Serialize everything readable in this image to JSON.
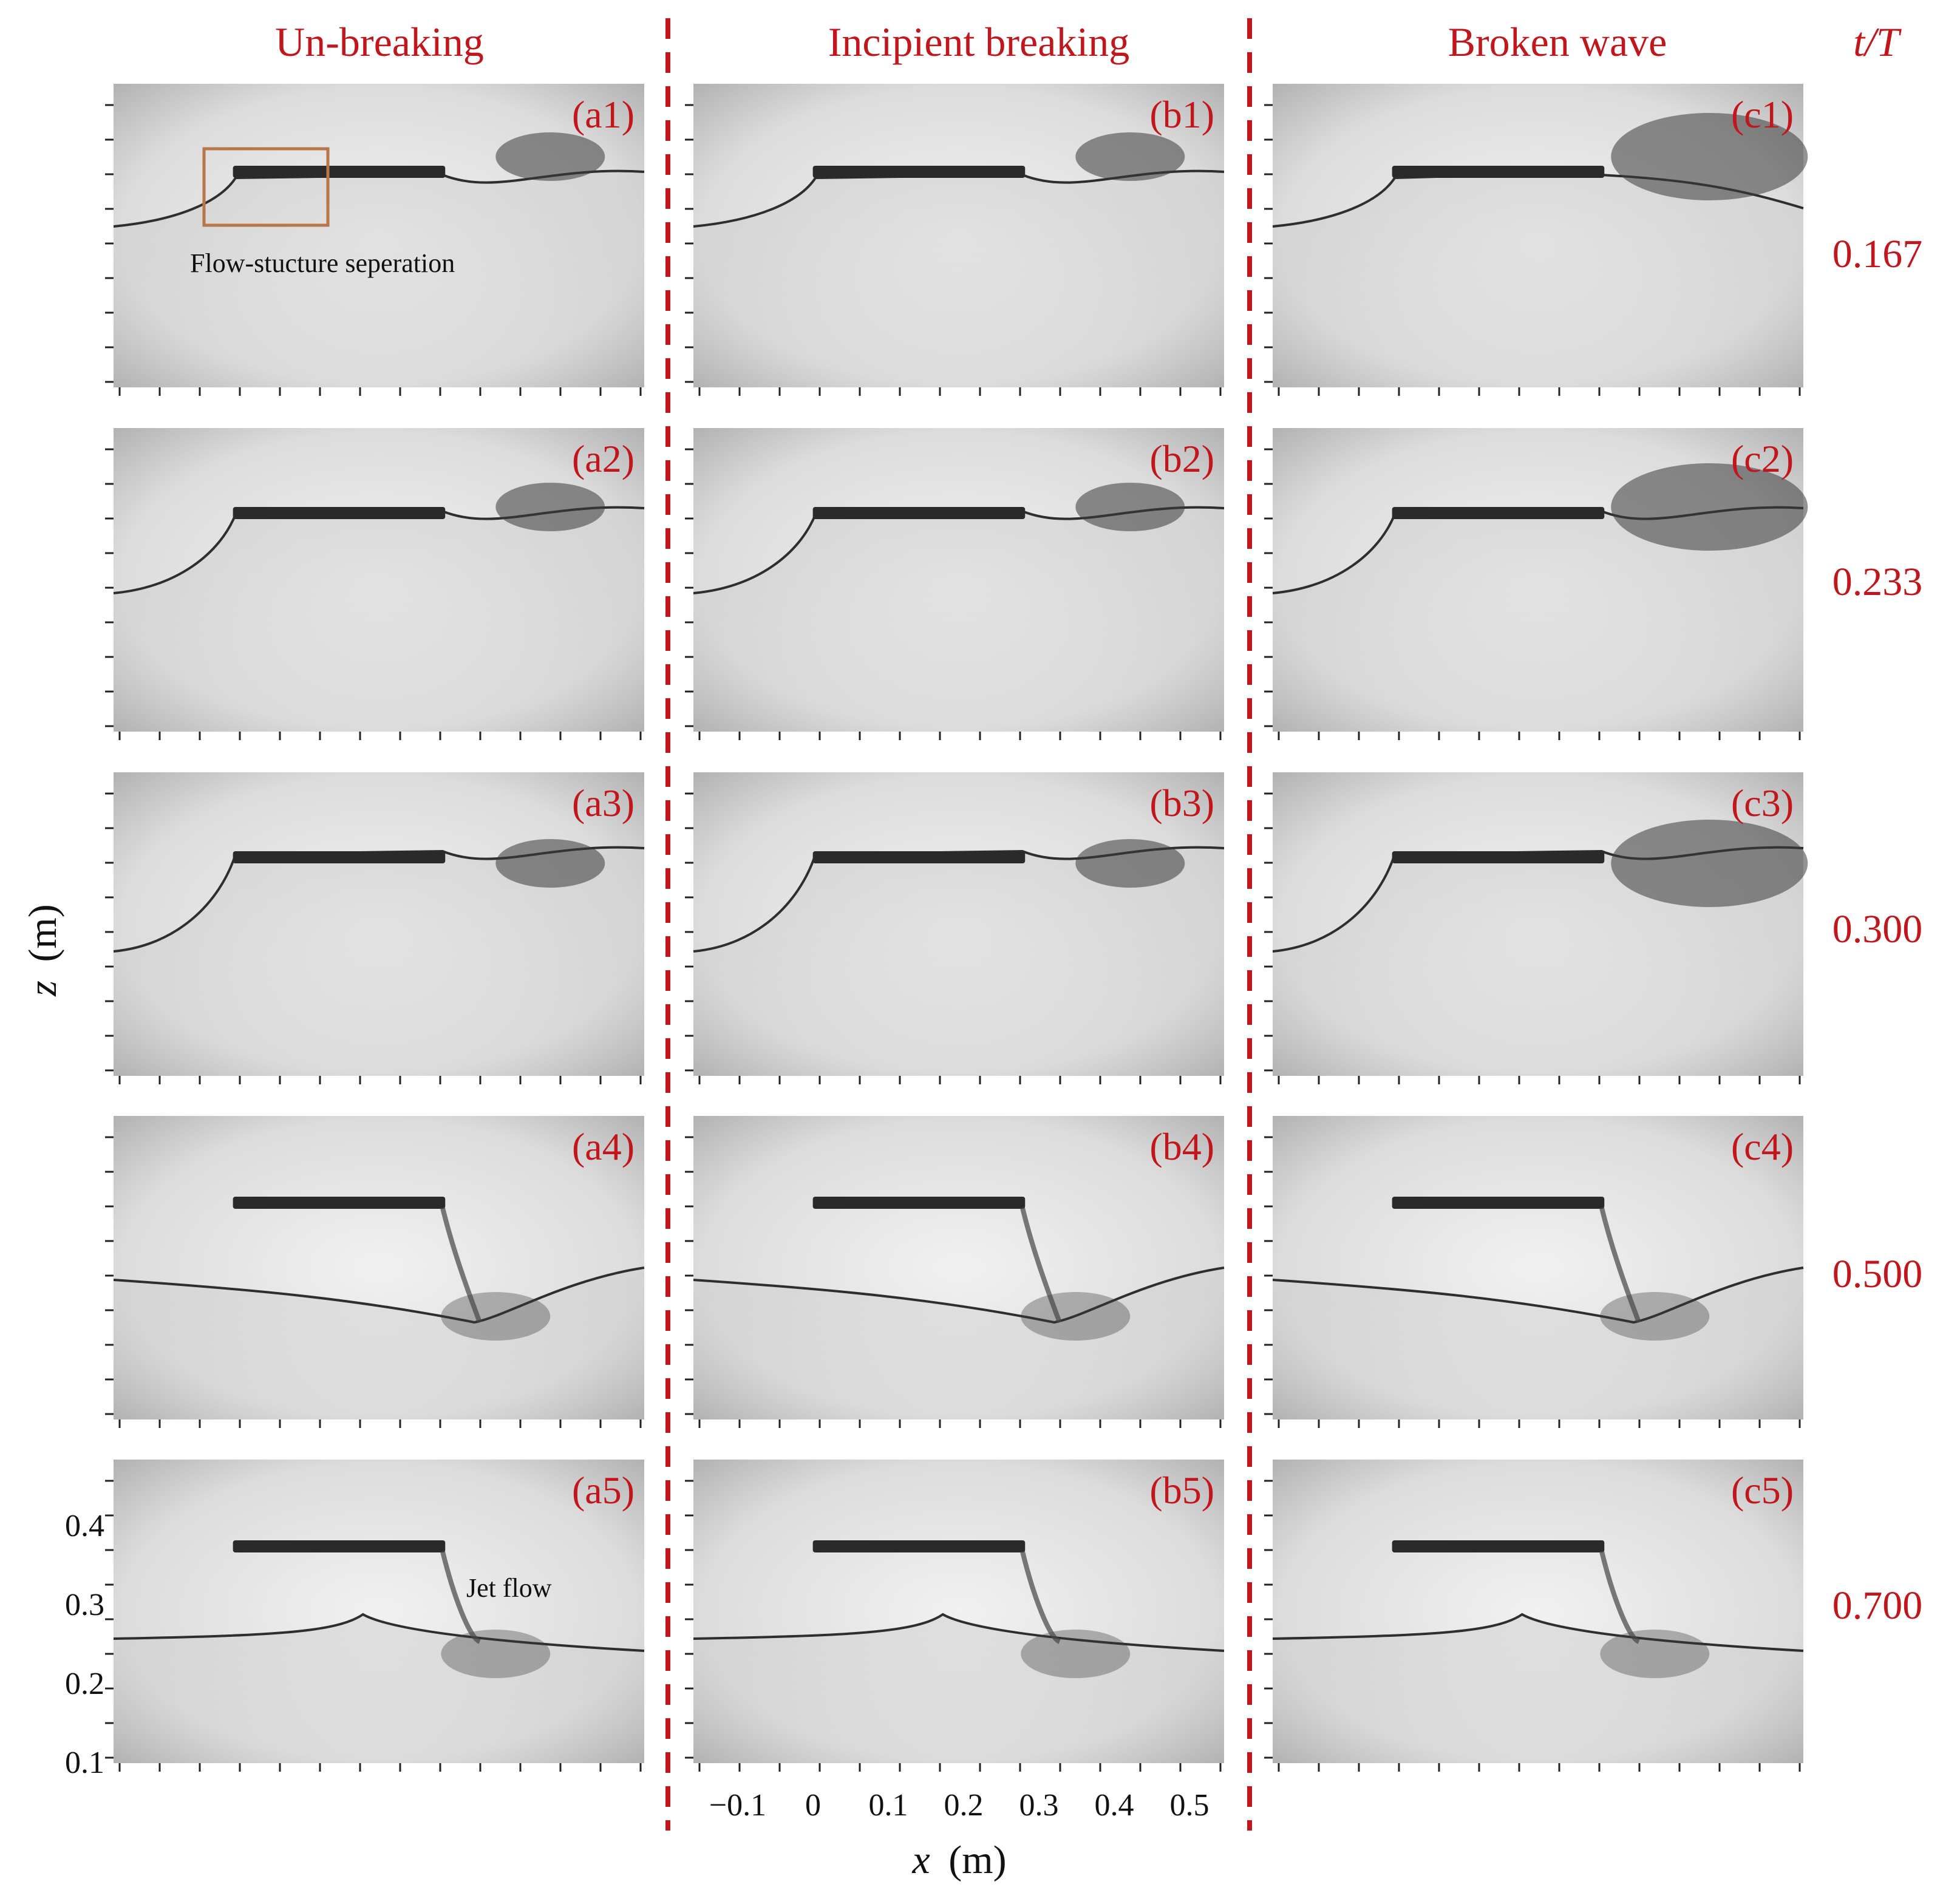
{
  "column_headers": [
    "Un-breaking",
    "Incipient breaking",
    "Broken wave"
  ],
  "time_header": "t/T",
  "time_values": [
    "0.167",
    "0.233",
    "0.300",
    "0.500",
    "0.700"
  ],
  "panel_labels": [
    [
      "(a1)",
      "(b1)",
      "(c1)"
    ],
    [
      "(a2)",
      "(b2)",
      "(c2)"
    ],
    [
      "(a3)",
      "(b3)",
      "(c3)"
    ],
    [
      "(a4)",
      "(b4)",
      "(c4)"
    ],
    [
      "(a5)",
      "(b5)",
      "(c5)"
    ]
  ],
  "annotations": {
    "flow_separation": "Flow-stucture seperation",
    "jet_flow": "Jet flow"
  },
  "axes": {
    "y_label_var": "z",
    "y_label_unit": "(m)",
    "x_label_var": "x",
    "x_label_unit": "(m)",
    "y_ticks": [
      "0.4",
      "0.3",
      "0.2",
      "0.1"
    ],
    "x_ticks": [
      "−0.1",
      "0",
      "0.1",
      "0.2",
      "0.3",
      "0.4",
      "0.5"
    ]
  },
  "colors": {
    "accent_red": "#c0161c",
    "highlight_box": "#b8764a",
    "structure": "#2a2a2a"
  }
}
